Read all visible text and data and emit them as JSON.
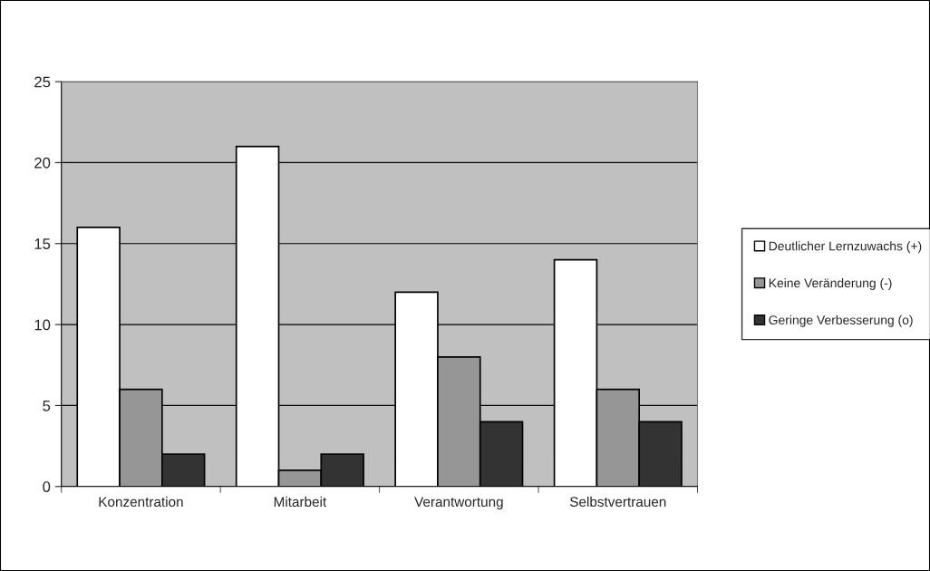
{
  "chart_data": {
    "type": "bar",
    "categories": [
      "Konzentration",
      "Mitarbeit",
      "Verantwortung",
      "Selbstvertrauen"
    ],
    "series": [
      {
        "name": "Deutlicher Lernzuwachs (+)",
        "color": "#ffffff",
        "values": [
          16,
          21,
          12,
          14
        ]
      },
      {
        "name": "Keine Veränderung (-)",
        "color": "#969696",
        "values": [
          6,
          1,
          8,
          6
        ]
      },
      {
        "name": "Geringe Verbesserung (o)",
        "color": "#333333",
        "values": [
          2,
          2,
          4,
          4
        ]
      }
    ],
    "ylim": [
      0,
      25
    ],
    "yticks": [
      0,
      5,
      10,
      15,
      20,
      25
    ],
    "grid": "y",
    "legend": "right"
  }
}
